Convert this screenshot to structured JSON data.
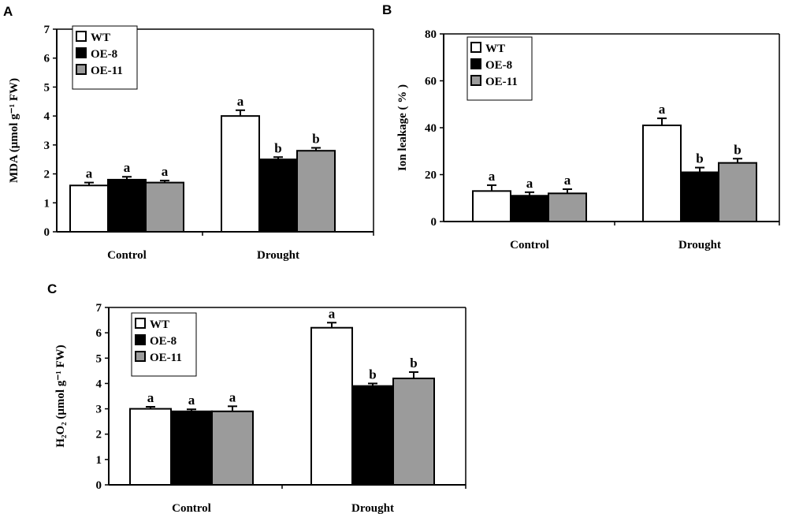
{
  "colors": {
    "WT": "#ffffff",
    "OE-8": "#000000",
    "OE-11": "#9b9b9b",
    "axis": "#000000"
  },
  "chart_data": [
    {
      "panel": "A",
      "type": "bar",
      "categories": [
        "Control",
        "Drought"
      ],
      "ylabel": "MDA (μmol g⁻¹ FW)",
      "ylim": [
        0,
        7
      ],
      "yticks": [
        0,
        1,
        2,
        3,
        4,
        5,
        6,
        7
      ],
      "legend": [
        "WT",
        "OE-8",
        "OE-11"
      ],
      "legend_position": "top-left",
      "series": [
        {
          "name": "WT",
          "values": [
            1.6,
            4.0
          ],
          "errors": [
            0.1,
            0.2
          ],
          "letters": [
            "a",
            "a"
          ]
        },
        {
          "name": "OE-8",
          "values": [
            1.8,
            2.5
          ],
          "errors": [
            0.1,
            0.08
          ],
          "letters": [
            "a",
            "b"
          ]
        },
        {
          "name": "OE-11",
          "values": [
            1.7,
            2.8
          ],
          "errors": [
            0.07,
            0.1
          ],
          "letters": [
            "a",
            "b"
          ]
        }
      ]
    },
    {
      "panel": "B",
      "type": "bar",
      "categories": [
        "Control",
        "Drought"
      ],
      "ylabel": "Ion leakage ( % )",
      "ylim": [
        0,
        80
      ],
      "yticks": [
        0,
        20,
        40,
        60,
        80
      ],
      "legend": [
        "WT",
        "OE-8",
        "OE-11"
      ],
      "legend_position": "top-left",
      "series": [
        {
          "name": "WT",
          "values": [
            13,
            41
          ],
          "errors": [
            2.5,
            3
          ],
          "letters": [
            "a",
            "a"
          ]
        },
        {
          "name": "OE-8",
          "values": [
            11,
            21
          ],
          "errors": [
            1.5,
            2
          ],
          "letters": [
            "a",
            "b"
          ]
        },
        {
          "name": "OE-11",
          "values": [
            12,
            25
          ],
          "errors": [
            1.8,
            1.8
          ],
          "letters": [
            "a",
            "b"
          ]
        }
      ]
    },
    {
      "panel": "C",
      "type": "bar",
      "categories": [
        "Control",
        "Drought"
      ],
      "ylabel": "H₂O₂ (μmol g⁻¹ FW)",
      "ylim": [
        0,
        7
      ],
      "yticks": [
        0,
        1,
        2,
        3,
        4,
        5,
        6,
        7
      ],
      "legend": [
        "WT",
        "OE-8",
        "OE-11"
      ],
      "legend_position": "top-left",
      "series": [
        {
          "name": "WT",
          "values": [
            3.0,
            6.2
          ],
          "errors": [
            0.08,
            0.2
          ],
          "letters": [
            "a",
            "a"
          ]
        },
        {
          "name": "OE-8",
          "values": [
            2.9,
            3.9
          ],
          "errors": [
            0.08,
            0.1
          ],
          "letters": [
            "a",
            "b"
          ]
        },
        {
          "name": "OE-11",
          "values": [
            2.9,
            4.2
          ],
          "errors": [
            0.2,
            0.25
          ],
          "letters": [
            "a",
            "b"
          ]
        }
      ]
    }
  ]
}
